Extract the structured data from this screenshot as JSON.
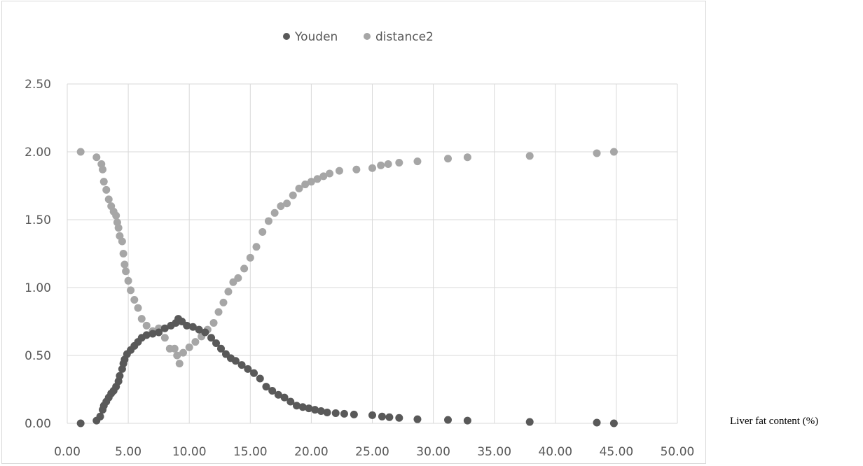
{
  "chart_data": {
    "type": "scatter",
    "title": "",
    "xlabel": "Liver fat content (%)",
    "ylabel": "",
    "xlim": [
      0,
      50
    ],
    "ylim": [
      0,
      2.5
    ],
    "x_ticks": [
      "0.00",
      "5.00",
      "10.00",
      "15.00",
      "20.00",
      "25.00",
      "30.00",
      "35.00",
      "40.00",
      "45.00",
      "50.00"
    ],
    "y_ticks": [
      "0.00",
      "0.50",
      "1.00",
      "1.50",
      "2.00",
      "2.50"
    ],
    "grid": true,
    "legend_position": "top-center",
    "colors": {
      "Youden": "#595959",
      "distance2": "#a6a6a6",
      "grid": "#d9d9d9",
      "axis_text": "#595959"
    },
    "series": [
      {
        "name": "Youden",
        "x": [
          1.1,
          2.4,
          2.7,
          2.9,
          3.0,
          3.2,
          3.4,
          3.6,
          3.8,
          4.0,
          4.2,
          4.3,
          4.5,
          4.6,
          4.7,
          4.9,
          5.2,
          5.5,
          5.8,
          6.1,
          6.5,
          7.0,
          7.5,
          8.0,
          8.5,
          8.9,
          9.1,
          9.4,
          9.8,
          10.3,
          10.8,
          11.3,
          11.8,
          12.2,
          12.6,
          13.0,
          13.4,
          13.8,
          14.3,
          14.8,
          15.3,
          15.8,
          16.3,
          16.8,
          17.3,
          17.8,
          18.3,
          18.8,
          19.3,
          19.8,
          20.3,
          20.8,
          21.3,
          22.0,
          22.7,
          23.5,
          25.0,
          25.8,
          26.4,
          27.2,
          28.7,
          31.2,
          32.8,
          37.9,
          43.4,
          44.8
        ],
        "y": [
          0.0,
          0.02,
          0.05,
          0.1,
          0.13,
          0.16,
          0.19,
          0.22,
          0.24,
          0.27,
          0.31,
          0.35,
          0.4,
          0.44,
          0.47,
          0.51,
          0.54,
          0.57,
          0.6,
          0.63,
          0.65,
          0.66,
          0.67,
          0.7,
          0.72,
          0.74,
          0.77,
          0.75,
          0.72,
          0.71,
          0.69,
          0.67,
          0.63,
          0.59,
          0.55,
          0.51,
          0.48,
          0.46,
          0.43,
          0.4,
          0.37,
          0.33,
          0.27,
          0.24,
          0.21,
          0.19,
          0.16,
          0.13,
          0.12,
          0.11,
          0.1,
          0.09,
          0.08,
          0.075,
          0.07,
          0.065,
          0.06,
          0.05,
          0.045,
          0.04,
          0.03,
          0.025,
          0.02,
          0.01,
          0.005,
          0.0
        ]
      },
      {
        "name": "distance2",
        "x": [
          1.1,
          2.4,
          2.8,
          2.9,
          3.0,
          3.2,
          3.4,
          3.6,
          3.8,
          4.0,
          4.1,
          4.2,
          4.3,
          4.5,
          4.6,
          4.7,
          4.8,
          5.0,
          5.2,
          5.5,
          5.8,
          6.1,
          6.5,
          7.0,
          7.5,
          8.0,
          8.4,
          8.8,
          9.0,
          9.2,
          9.5,
          10.0,
          10.5,
          11.0,
          11.5,
          12.0,
          12.4,
          12.8,
          13.2,
          13.6,
          14.0,
          14.5,
          15.0,
          15.5,
          16.0,
          16.5,
          17.0,
          17.5,
          18.0,
          18.5,
          19.0,
          19.5,
          20.0,
          20.5,
          21.0,
          21.5,
          22.3,
          23.7,
          25.0,
          25.7,
          26.3,
          27.2,
          28.7,
          31.2,
          32.8,
          37.9,
          43.4,
          44.8
        ],
        "y": [
          2.0,
          1.96,
          1.91,
          1.87,
          1.78,
          1.72,
          1.65,
          1.6,
          1.56,
          1.53,
          1.48,
          1.44,
          1.38,
          1.34,
          1.25,
          1.17,
          1.12,
          1.05,
          0.98,
          0.91,
          0.85,
          0.77,
          0.72,
          0.68,
          0.7,
          0.63,
          0.55,
          0.55,
          0.5,
          0.44,
          0.52,
          0.56,
          0.6,
          0.64,
          0.69,
          0.74,
          0.82,
          0.89,
          0.97,
          1.04,
          1.07,
          1.14,
          1.22,
          1.3,
          1.41,
          1.49,
          1.55,
          1.6,
          1.62,
          1.68,
          1.73,
          1.76,
          1.78,
          1.8,
          1.82,
          1.84,
          1.86,
          1.87,
          1.88,
          1.9,
          1.91,
          1.92,
          1.93,
          1.95,
          1.96,
          1.97,
          1.99,
          2.0
        ]
      }
    ]
  }
}
